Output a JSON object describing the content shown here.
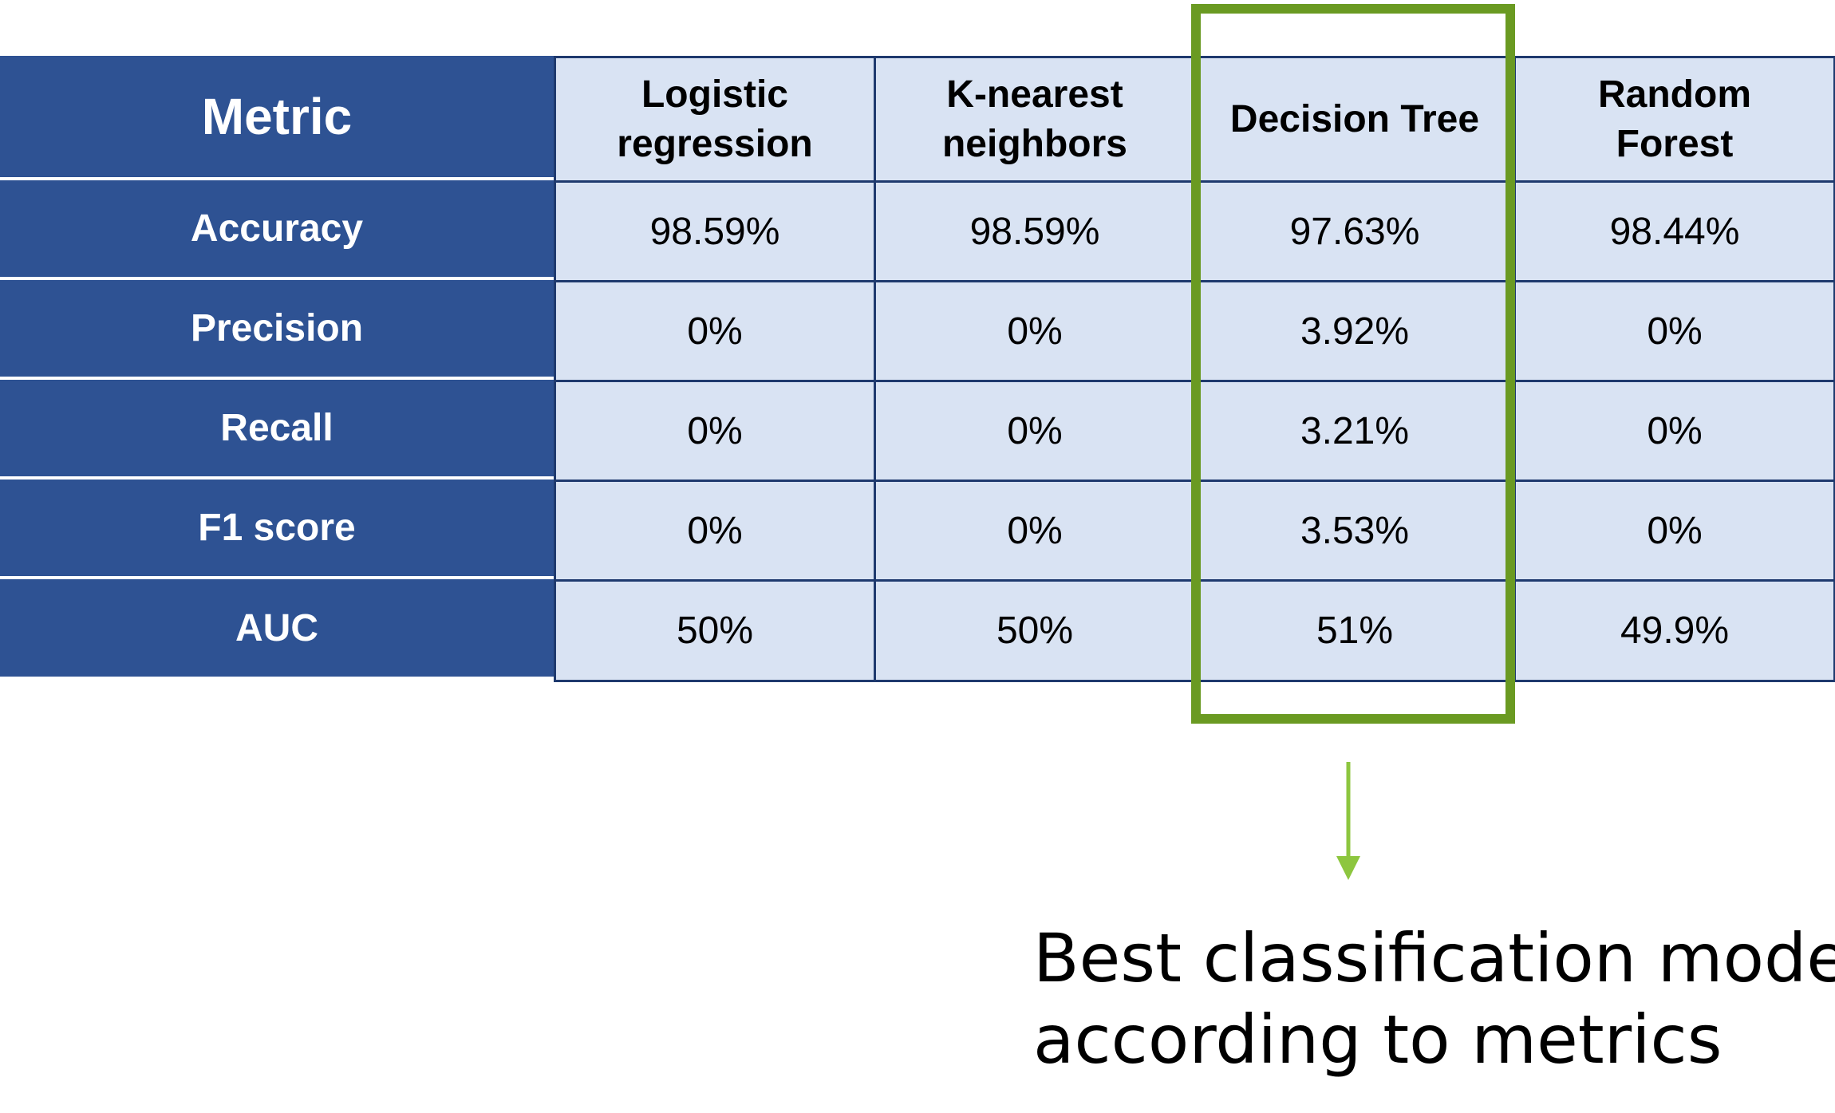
{
  "chart_data": {
    "type": "table",
    "columns": [
      "Metric",
      "Logistic regression",
      "K-nearest neighbors",
      "Decision Tree",
      "Random Forest"
    ],
    "rows": [
      {
        "metric": "Accuracy",
        "values": [
          "98.59%",
          "98.59%",
          "97.63%",
          "98.44%"
        ]
      },
      {
        "metric": "Precision",
        "values": [
          "0%",
          "0%",
          "3.92%",
          "0%"
        ]
      },
      {
        "metric": "Recall",
        "values": [
          "0%",
          "0%",
          "3.21%",
          "0%"
        ]
      },
      {
        "metric": "F1 score",
        "values": [
          "0%",
          "0%",
          "3.53%",
          "0%"
        ]
      },
      {
        "metric": "AUC",
        "values": [
          "50%",
          "50%",
          "51%",
          "49.9%"
        ]
      }
    ],
    "highlighted_column": "Decision Tree"
  },
  "table": {
    "header_label": "Metric",
    "models": [
      {
        "lines": [
          "Logistic",
          "regression"
        ]
      },
      {
        "lines": [
          "K-nearest",
          "neighbors"
        ]
      },
      {
        "lines": [
          "Decision Tree"
        ]
      },
      {
        "lines": [
          "Random",
          "Forest"
        ]
      }
    ]
  },
  "annotation": {
    "lines": [
      "Best classification model",
      "according to metrics"
    ]
  },
  "colors": {
    "metric_column": "#2e5293",
    "cell_fill": "#d9e3f3",
    "cell_border": "#1f3a6e",
    "highlight": "#6a9a22",
    "arrow": "#8dc63f"
  }
}
